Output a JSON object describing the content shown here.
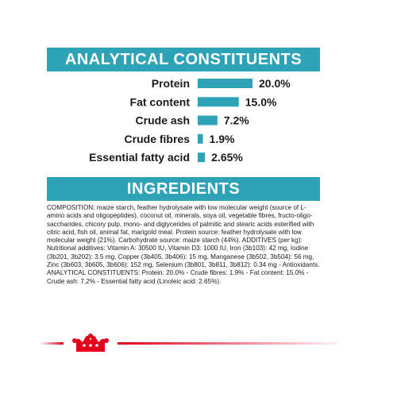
{
  "analytical": {
    "heading": "ANALYTICAL CONSTITUENTS"
  },
  "ingredients": {
    "heading": "INGREDIENTS",
    "text": "COMPOSITION: maize starch, feather hydrolysate with low molecular weight (source of L-amino acids and oligopeptides), coconut oil, minerals, soya oil, vegetable fibres, fructo-oligo-saccharides, chicory pulp, mono- and diglycerides of palmitic and stearic acids esterified with citric acid, fish oil, animal fat, marigold meal. Protein source: feather hydrolysate with low molecular weight (21%). Carbohydrate source: maize starch (44%). ADDITIVES (per kg): Nutritional additives: Vitamin A: 30500 IU, Vitamin D3: 1000 IU, Iron (3b103): 42 mg, Iodine (3b201, 3b202): 3.5 mg, Copper (3b405, 3b406): 15 mg, Manganese (3b502, 3b504): 56 mg, Zinc (3b603, 3b605, 3b606): 152 mg, Selenium (3b801, 3b811, 3b812): 0.34 mg - Antioxidants. ANALYTICAL CONSTITUENTS: Protein: 20.0% - Crude fibres: 1.9% - Fat content: 15.0% - Crude ash: 7.2% - Essential fatty acid (Linoleic acid: 2.65%)."
  },
  "chart_data": {
    "type": "bar",
    "orientation": "horizontal",
    "title": "",
    "categories": [
      "Protein",
      "Fat content",
      "Crude ash",
      "Crude fibres",
      "Essential fatty acid"
    ],
    "values": [
      20.0,
      15.0,
      7.2,
      1.9,
      2.65
    ],
    "value_labels": [
      "20.0%",
      "15.0%",
      "7.2%",
      "1.9%",
      "2.65%"
    ],
    "xlim": [
      0,
      20.0
    ],
    "bar_color": "#2ea2b6",
    "grid": false,
    "legend": "none"
  },
  "colors": {
    "accent": "#2ea2b6",
    "brand_red": "#e2001a"
  },
  "footer": {
    "logo_icon": "royal-crown-icon"
  }
}
